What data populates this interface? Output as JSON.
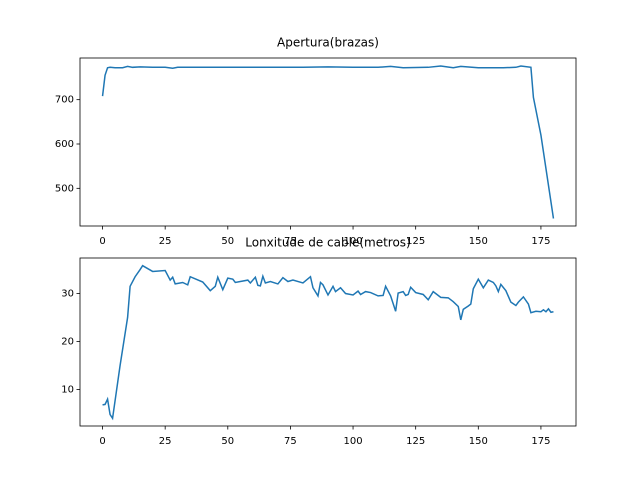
{
  "chart_data": [
    {
      "type": "line",
      "title": "Apertura(brazas)",
      "color": "#1f77b4",
      "x": [
        0,
        1,
        2,
        3,
        5,
        8,
        10,
        12,
        15,
        20,
        25,
        28,
        30,
        40,
        50,
        60,
        70,
        80,
        90,
        100,
        110,
        115,
        120,
        130,
        135,
        140,
        143,
        150,
        160,
        165,
        167,
        171,
        172,
        175,
        180
      ],
      "values": [
        708,
        755,
        772,
        773,
        772,
        772,
        775,
        773,
        774,
        773,
        773,
        771,
        773,
        773,
        773,
        773,
        773,
        773,
        774,
        773,
        773,
        775,
        772,
        773,
        776,
        772,
        775,
        772,
        772,
        773,
        776,
        773,
        705,
        620,
        432
      ],
      "xlim": [
        -9,
        189
      ],
      "xticks": [
        0,
        25,
        50,
        75,
        100,
        125,
        150,
        175
      ],
      "ylim": [
        415,
        794
      ],
      "yticks": [
        500,
        600,
        700
      ]
    },
    {
      "type": "line",
      "title": "Lonxitude de cable(metros)",
      "color": "#1f77b4",
      "x": [
        0,
        1,
        2,
        3,
        4,
        7,
        10,
        11,
        13,
        15,
        16,
        18,
        20,
        25,
        27,
        28,
        29,
        32,
        34,
        35,
        40,
        43,
        45,
        46,
        48,
        50,
        52,
        53,
        55,
        58,
        59,
        61,
        62,
        63,
        64,
        65,
        67,
        70,
        72,
        74,
        76,
        80,
        83,
        84,
        86,
        87,
        88,
        90,
        92,
        93,
        95,
        97,
        100,
        102,
        103,
        105,
        107,
        110,
        112,
        113,
        115,
        117,
        118,
        120,
        121,
        122,
        123,
        125,
        128,
        130,
        132,
        135,
        138,
        140,
        142,
        143,
        144,
        146,
        147,
        148,
        150,
        152,
        154,
        156,
        157,
        158,
        159,
        161,
        163,
        165,
        166,
        168,
        170,
        171,
        173,
        175,
        176,
        177,
        178,
        179,
        180
      ],
      "values": [
        6.8,
        6.9,
        8,
        4.8,
        4,
        15,
        25,
        31.5,
        33.5,
        35,
        35.8,
        35.2,
        34.6,
        34.8,
        32.8,
        33.4,
        32,
        32.3,
        31.8,
        33.5,
        32.4,
        30.6,
        31.5,
        33.4,
        30.8,
        33.2,
        33,
        32.3,
        32.5,
        32.8,
        32.2,
        33.4,
        31.7,
        31.6,
        33.6,
        32.2,
        32.5,
        32,
        33.3,
        32.5,
        32.8,
        32.2,
        33.5,
        31.2,
        29.5,
        32.3,
        31.8,
        29.7,
        31.5,
        30.4,
        31.2,
        30,
        29.7,
        30.5,
        29.8,
        30.4,
        30.2,
        29.5,
        29.6,
        31.5,
        29.5,
        26.3,
        30.1,
        30.4,
        29.6,
        29.8,
        31.3,
        30.2,
        29.8,
        28.7,
        30.4,
        29.2,
        29.1,
        28.3,
        27.3,
        24.5,
        26.7,
        27.4,
        27.8,
        31,
        33,
        31.2,
        32.8,
        32.3,
        31.6,
        30.4,
        31.9,
        30.6,
        28.2,
        27.5,
        28.2,
        29.3,
        27.8,
        26,
        26.3,
        26.2,
        26.6,
        26.2,
        26.8,
        26.1,
        26.2
      ],
      "xlim": [
        -9,
        189
      ],
      "xticks": [
        0,
        25,
        50,
        75,
        100,
        125,
        150,
        175
      ],
      "ylim": [
        2.4,
        37.4
      ],
      "yticks": [
        10,
        20,
        30
      ]
    }
  ]
}
